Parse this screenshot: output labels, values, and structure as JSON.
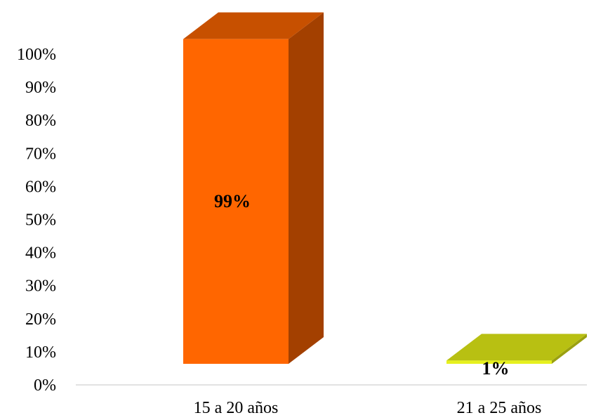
{
  "chart_data": {
    "type": "bar",
    "categories": [
      "15 a 20 años",
      "21 a 25 años"
    ],
    "values": [
      99,
      1
    ],
    "data_labels": [
      "99%",
      "1%"
    ],
    "ylim": [
      0,
      100
    ],
    "yticks": [
      0,
      10,
      20,
      30,
      40,
      50,
      60,
      70,
      80,
      90,
      100
    ],
    "ytick_labels": [
      "0%",
      "10%",
      "20%",
      "30%",
      "40%",
      "50%",
      "60%",
      "70%",
      "80%",
      "90%",
      "100%"
    ],
    "title": "",
    "xlabel": "",
    "ylabel": "",
    "grid": false,
    "style": "3d-column",
    "colors": {
      "bars": [
        {
          "front": "#ff6600",
          "top": "#c75000",
          "side": "#a34000"
        },
        {
          "front": "#e6f01e",
          "top": "#b8c012",
          "side": "#9aa010"
        }
      ],
      "axis": "#d9d9d9"
    }
  }
}
